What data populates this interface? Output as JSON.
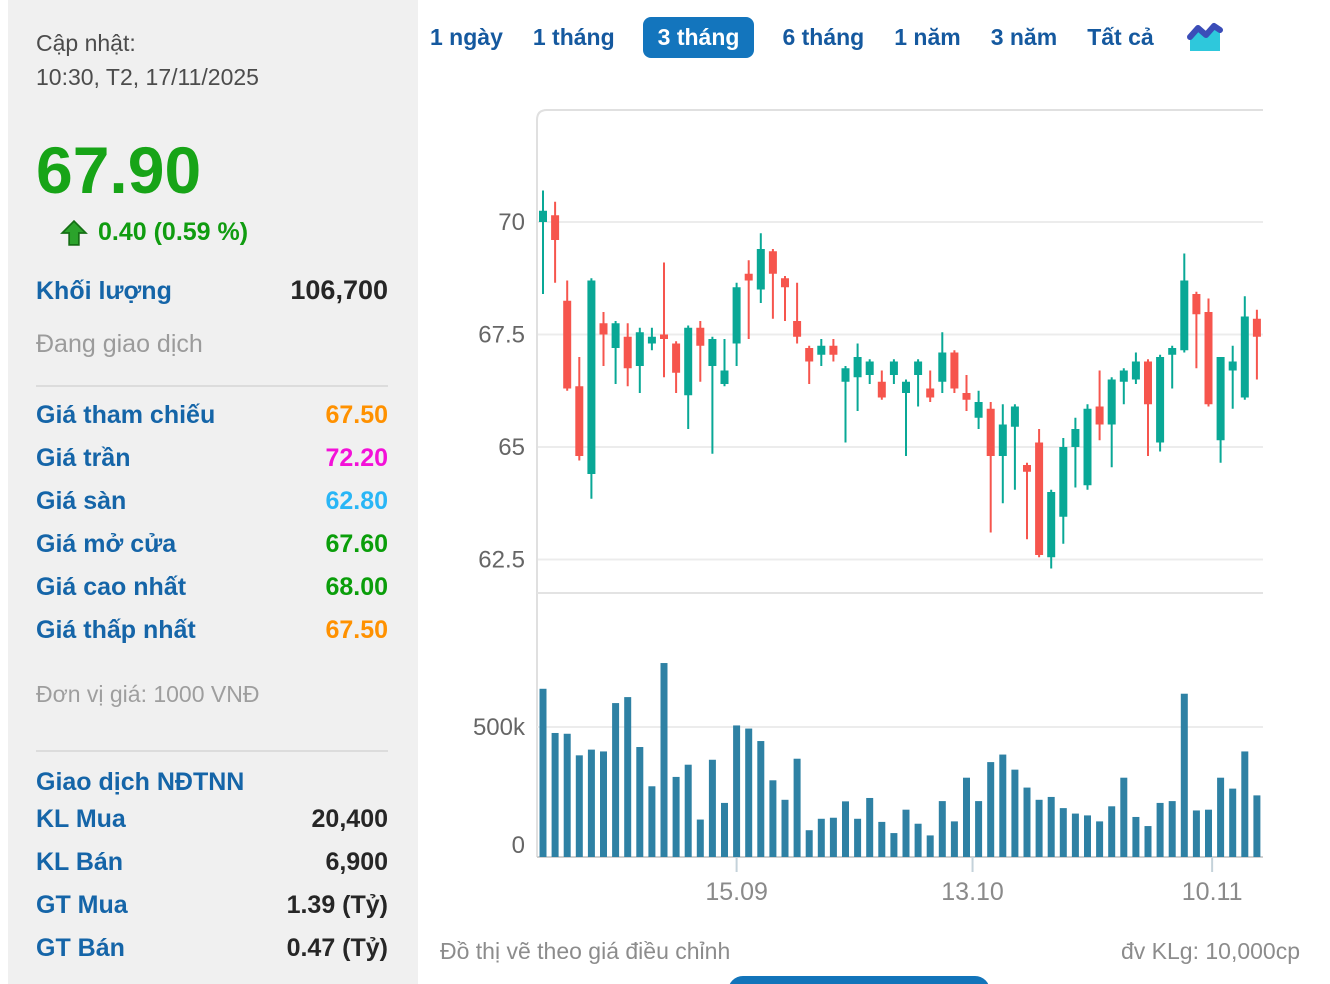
{
  "sidebar": {
    "updated_label": "Cập nhật:",
    "updated_time": "10:30, T2, 17/11/2025",
    "price": "67.90",
    "change": "0.40 (0.59 %)",
    "volume_label": "Khối lượng",
    "volume_value": "106,700",
    "session_status": "Đang giao dịch",
    "price_rows": [
      {
        "label": "Giá tham chiếu",
        "value": "67.50",
        "color": "#ff9100"
      },
      {
        "label": "Giá trần",
        "value": "72.20",
        "color": "#f311d8"
      },
      {
        "label": "Giá sàn",
        "value": "62.80",
        "color": "#29b6f6"
      },
      {
        "label": "Giá mở cửa",
        "value": "67.60",
        "color": "#0a9e0a"
      },
      {
        "label": "Giá cao nhất",
        "value": "68.00",
        "color": "#0a9e0a"
      },
      {
        "label": "Giá thấp nhất",
        "value": "67.50",
        "color": "#ff9100"
      }
    ],
    "unit_note": "Đơn vị giá: 1000 VNĐ",
    "foreign_title": "Giao dịch NĐTNN",
    "foreign_rows": [
      {
        "label": "KL Mua",
        "value": "20,400"
      },
      {
        "label": "KL Bán",
        "value": "6,900"
      },
      {
        "label": "GT Mua",
        "value": "1.39 (Tỷ)"
      },
      {
        "label": "GT Bán",
        "value": "0.47 (Tỷ)"
      }
    ]
  },
  "tabs": {
    "items": [
      "1 ngày",
      "1 tháng",
      "3 tháng",
      "6 tháng",
      "1 năm",
      "3 năm",
      "Tất cả"
    ],
    "active_index": 2
  },
  "footer": {
    "left_note": "Đồ thị vẽ theo giá điều chỉnh",
    "right_note": "đv KLg: 10,000cp"
  },
  "chart_data": {
    "type": "candlestick_volume",
    "price_axis": {
      "tick_labels": [
        "70",
        "67.5",
        "65",
        "62.5"
      ],
      "tick_values": [
        70,
        67.5,
        65,
        62.5
      ],
      "range": [
        62.0,
        72.5
      ]
    },
    "volume_axis": {
      "tick_labels": [
        "500k",
        "0"
      ],
      "tick_values": [
        500,
        0
      ],
      "unit": "10,000cp x k"
    },
    "x_ticks": [
      {
        "label": "15.09",
        "index": 16
      },
      {
        "label": "13.10",
        "index": 35.5
      },
      {
        "label": "10.11",
        "index": 55.3
      }
    ],
    "legend_position": "none",
    "grid": true,
    "candles_ohlc": [
      [
        70.0,
        70.7,
        68.4,
        70.25
      ],
      [
        70.15,
        70.45,
        68.65,
        69.6
      ],
      [
        68.25,
        68.7,
        66.25,
        66.3
      ],
      [
        66.35,
        67.0,
        64.7,
        64.8
      ],
      [
        64.4,
        68.75,
        63.85,
        68.7
      ],
      [
        67.75,
        68.0,
        66.8,
        67.5
      ],
      [
        67.2,
        67.8,
        66.4,
        67.75
      ],
      [
        67.45,
        67.75,
        66.35,
        66.75
      ],
      [
        66.8,
        67.65,
        66.2,
        67.55
      ],
      [
        67.3,
        67.65,
        67.15,
        67.45
      ],
      [
        67.5,
        69.1,
        66.55,
        67.4
      ],
      [
        67.3,
        67.35,
        66.2,
        66.65
      ],
      [
        66.15,
        67.7,
        65.4,
        67.65
      ],
      [
        67.65,
        67.8,
        66.45,
        67.25
      ],
      [
        66.8,
        67.45,
        64.85,
        67.4
      ],
      [
        66.4,
        67.4,
        66.35,
        66.7
      ],
      [
        67.3,
        68.65,
        66.8,
        68.55
      ],
      [
        68.85,
        69.15,
        67.4,
        68.7
      ],
      [
        68.5,
        69.75,
        68.2,
        69.4
      ],
      [
        69.35,
        69.4,
        67.85,
        68.85
      ],
      [
        68.75,
        68.8,
        67.8,
        68.55
      ],
      [
        67.8,
        68.65,
        67.3,
        67.45
      ],
      [
        67.2,
        67.25,
        66.4,
        66.9
      ],
      [
        67.05,
        67.4,
        66.8,
        67.25
      ],
      [
        67.25,
        67.4,
        66.9,
        67.05
      ],
      [
        66.45,
        66.8,
        65.1,
        66.75
      ],
      [
        66.55,
        67.3,
        65.8,
        67.0
      ],
      [
        66.6,
        66.95,
        66.4,
        66.9
      ],
      [
        66.45,
        66.7,
        66.05,
        66.1
      ],
      [
        66.6,
        66.95,
        66.4,
        66.9
      ],
      [
        66.2,
        66.5,
        64.8,
        66.45
      ],
      [
        66.6,
        66.95,
        65.9,
        66.9
      ],
      [
        66.3,
        66.7,
        66.0,
        66.1
      ],
      [
        66.45,
        67.55,
        66.2,
        67.1
      ],
      [
        67.1,
        67.15,
        66.2,
        66.3
      ],
      [
        66.2,
        66.6,
        65.8,
        66.05
      ],
      [
        65.65,
        66.25,
        65.4,
        66.0
      ],
      [
        65.85,
        66.0,
        63.1,
        64.8
      ],
      [
        64.8,
        65.95,
        63.75,
        65.5
      ],
      [
        65.45,
        65.95,
        64.05,
        65.9
      ],
      [
        64.6,
        64.65,
        62.95,
        64.45
      ],
      [
        65.1,
        65.4,
        62.55,
        62.6
      ],
      [
        62.55,
        64.05,
        62.3,
        64.0
      ],
      [
        63.45,
        65.2,
        62.85,
        65.0
      ],
      [
        65.0,
        65.65,
        64.1,
        65.4
      ],
      [
        64.15,
        65.95,
        64.05,
        65.85
      ],
      [
        65.9,
        66.7,
        65.15,
        65.5
      ],
      [
        65.5,
        66.55,
        64.55,
        66.5
      ],
      [
        66.45,
        66.75,
        65.95,
        66.7
      ],
      [
        66.5,
        67.1,
        66.4,
        66.9
      ],
      [
        66.9,
        66.95,
        64.8,
        65.95
      ],
      [
        65.1,
        67.05,
        64.9,
        67.0
      ],
      [
        67.05,
        67.25,
        66.3,
        67.2
      ],
      [
        67.15,
        69.3,
        67.1,
        68.7
      ],
      [
        68.4,
        68.45,
        66.75,
        67.95
      ],
      [
        68.0,
        68.3,
        65.9,
        65.95
      ],
      [
        65.15,
        67.0,
        64.65,
        67.0
      ],
      [
        66.7,
        67.25,
        65.85,
        66.9
      ],
      [
        66.1,
        68.35,
        66.05,
        67.9
      ],
      [
        67.85,
        68.05,
        66.5,
        67.45
      ]
    ],
    "volumes_k": [
      647,
      477,
      474,
      391,
      413,
      406,
      592,
      615,
      423,
      272,
      746,
      308,
      355,
      144,
      374,
      208,
      506,
      494,
      446,
      295,
      220,
      378,
      103,
      147,
      151,
      214,
      147,
      227,
      135,
      92,
      182,
      128,
      83,
      215,
      137,
      305,
      215,
      365,
      394,
      336,
      267,
      220,
      231,
      188,
      167,
      160,
      137,
      195,
      305,
      154,
      119,
      208,
      215,
      628,
      179,
      182,
      305,
      263,
      406,
      237
    ],
    "colors": {
      "up": "#09a896",
      "down": "#f6554d",
      "volume": "#2e81a4"
    }
  }
}
